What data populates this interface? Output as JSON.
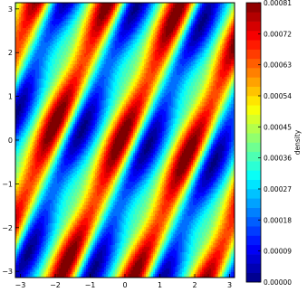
{
  "chart_data": {
    "type": "heatmap",
    "title": "",
    "xlabel": "",
    "ylabel": "",
    "xlim": [
      -3.14159,
      3.14159
    ],
    "ylim": [
      -3.14159,
      3.14159
    ],
    "x_ticks": [
      -3,
      -2,
      -1,
      0,
      1,
      2,
      3
    ],
    "x_tick_labels": [
      "−3",
      "−2",
      "−1",
      "0",
      "1",
      "2",
      "3"
    ],
    "y_ticks": [
      -3,
      -2,
      -1,
      0,
      1,
      2,
      3
    ],
    "y_tick_labels": [
      "−3",
      "−2",
      "−1",
      "0",
      "1",
      "2",
      "3"
    ],
    "colormap": "jet",
    "colorbar": {
      "label": "density",
      "vmin": 0.0,
      "vmax": 0.00081,
      "ticks": [
        0.0,
        9e-05,
        0.00018,
        0.00027,
        0.00036,
        0.00045,
        0.00054,
        0.00063,
        0.00072,
        0.00081
      ],
      "tick_labels": [
        "0.00000",
        "0.00009",
        "0.00018",
        "0.00027",
        "0.00036",
        "0.00045",
        "0.00054",
        "0.00063",
        "0.00072",
        "0.00081"
      ]
    },
    "pattern": {
      "description_of_field": "periodic sheared oval peaks, density rises diagonally",
      "x_frequency": 3,
      "y_frequency": 2,
      "shear": 0.55,
      "levels": 30
    }
  }
}
